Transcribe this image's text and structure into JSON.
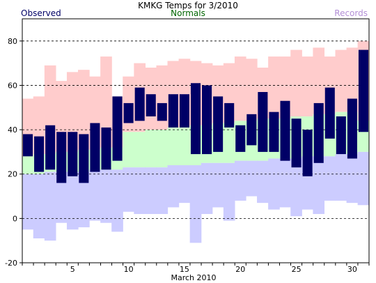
{
  "chart_data": {
    "type": "bar",
    "title": "KMKG Temps for 3/2010",
    "xlabel": "March 2010",
    "ylabel": "",
    "ylim": [
      -20,
      90
    ],
    "yticks": [
      -20,
      0,
      20,
      40,
      60,
      80
    ],
    "xticks": [
      5,
      10,
      15,
      20,
      25,
      30
    ],
    "grid": "horizontal dashed",
    "legend": [
      {
        "name": "Observed",
        "color": "#000066",
        "position": "top-left"
      },
      {
        "name": "Normals",
        "color": "#006600",
        "position": "top-center"
      },
      {
        "name": "Records",
        "color": "#b38fd6",
        "position": "top-right"
      }
    ],
    "colors": {
      "records_high": "#ffcccc",
      "normals": "#ccffcc",
      "records_low": "#ccccff",
      "observed": "#000066"
    },
    "days": [
      1,
      2,
      3,
      4,
      5,
      6,
      7,
      8,
      9,
      10,
      11,
      12,
      13,
      14,
      15,
      16,
      17,
      18,
      19,
      20,
      21,
      22,
      23,
      24,
      25,
      26,
      27,
      28,
      29,
      30,
      31
    ],
    "series": [
      {
        "name": "Record High",
        "values": [
          54,
          55,
          69,
          62,
          66,
          67,
          64,
          73,
          55,
          64,
          70,
          68,
          69,
          71,
          72,
          71,
          70,
          69,
          70,
          73,
          72,
          68,
          73,
          73,
          76,
          73,
          77,
          73,
          76,
          77,
          80
        ]
      },
      {
        "name": "Normal High",
        "values": [
          28,
          29,
          29,
          30,
          30,
          31,
          31,
          32,
          32,
          39,
          39,
          40,
          40,
          41,
          41,
          42,
          42,
          43,
          43,
          44,
          44,
          45,
          45,
          45,
          46,
          46,
          47,
          47,
          48,
          48,
          44
        ]
      },
      {
        "name": "Normal Low",
        "values": [
          20,
          20,
          21,
          21,
          21,
          21,
          22,
          22,
          22,
          23,
          23,
          23,
          23,
          24,
          24,
          24,
          25,
          25,
          25,
          26,
          26,
          26,
          27,
          27,
          27,
          28,
          28,
          28,
          29,
          29,
          30
        ]
      },
      {
        "name": "Record Low",
        "values": [
          -5,
          -9,
          -10,
          -2,
          -5,
          -4,
          -1,
          -2,
          -6,
          3,
          2,
          2,
          2,
          5,
          7,
          -11,
          2,
          5,
          -1,
          8,
          10,
          7,
          4,
          5,
          1,
          4,
          2,
          8,
          8,
          7,
          6
        ]
      },
      {
        "name": "Observed High",
        "values": [
          38,
          37,
          42,
          39,
          39,
          38,
          43,
          41,
          55,
          52,
          59,
          56,
          52,
          56,
          56,
          61,
          60,
          55,
          52,
          42,
          47,
          57,
          48,
          53,
          45,
          40,
          52,
          59,
          46,
          54,
          76
        ]
      },
      {
        "name": "Observed Low",
        "values": [
          28,
          21,
          22,
          16,
          19,
          16,
          21,
          22,
          26,
          43,
          44,
          46,
          44,
          41,
          41,
          29,
          29,
          30,
          41,
          30,
          33,
          30,
          30,
          26,
          23,
          19,
          25,
          36,
          29,
          27,
          39
        ]
      }
    ]
  }
}
